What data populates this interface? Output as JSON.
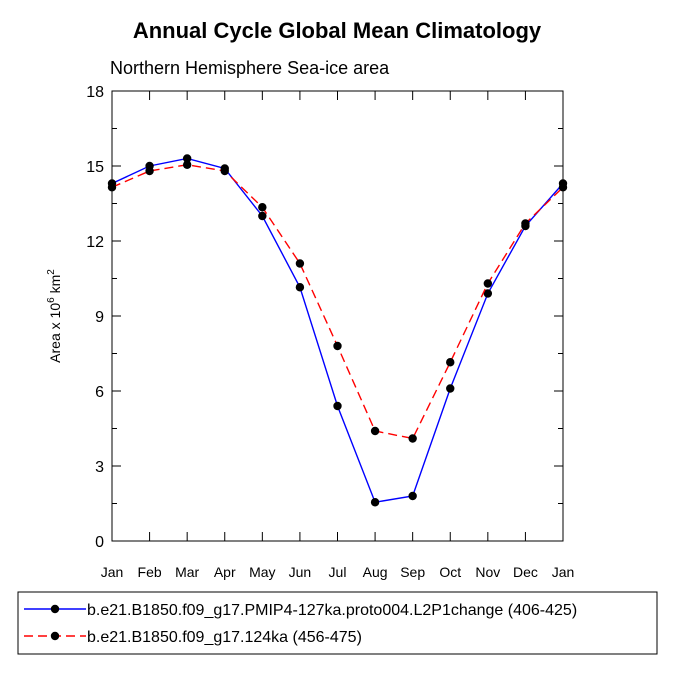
{
  "chart_data": {
    "type": "line",
    "title": "Annual Cycle Global Mean Climatology",
    "subtitle": "Northern Hemisphere Sea-ice area",
    "ylabel_prefix": "Area x 10",
    "ylabel_exp1": "6",
    "ylabel_mid": " km",
    "ylabel_exp2": "2",
    "xlabel": "",
    "categories": [
      "Jan",
      "Feb",
      "Mar",
      "Apr",
      "May",
      "Jun",
      "Jul",
      "Aug",
      "Sep",
      "Oct",
      "Nov",
      "Dec",
      "Jan"
    ],
    "ylim": [
      0,
      18
    ],
    "yticks": [
      0,
      3,
      6,
      9,
      12,
      15,
      18
    ],
    "legend_position": "bottom",
    "series": [
      {
        "name": "b.e21.B1850.f09_g17.PMIP4-127ka.proto004.L2P1change (406-425)",
        "color": "#0000ff",
        "style": "solid",
        "values": [
          14.3,
          15.0,
          15.3,
          14.9,
          13.0,
          10.15,
          5.4,
          1.55,
          1.8,
          6.1,
          9.9,
          12.6,
          14.3
        ]
      },
      {
        "name": "b.e21.B1850.f09_g17.124ka (456-475)",
        "color": "#ff0000",
        "style": "dashed",
        "values": [
          14.15,
          14.8,
          15.05,
          14.8,
          13.35,
          11.1,
          7.8,
          4.4,
          4.1,
          7.15,
          10.3,
          12.7,
          14.15
        ]
      }
    ]
  }
}
